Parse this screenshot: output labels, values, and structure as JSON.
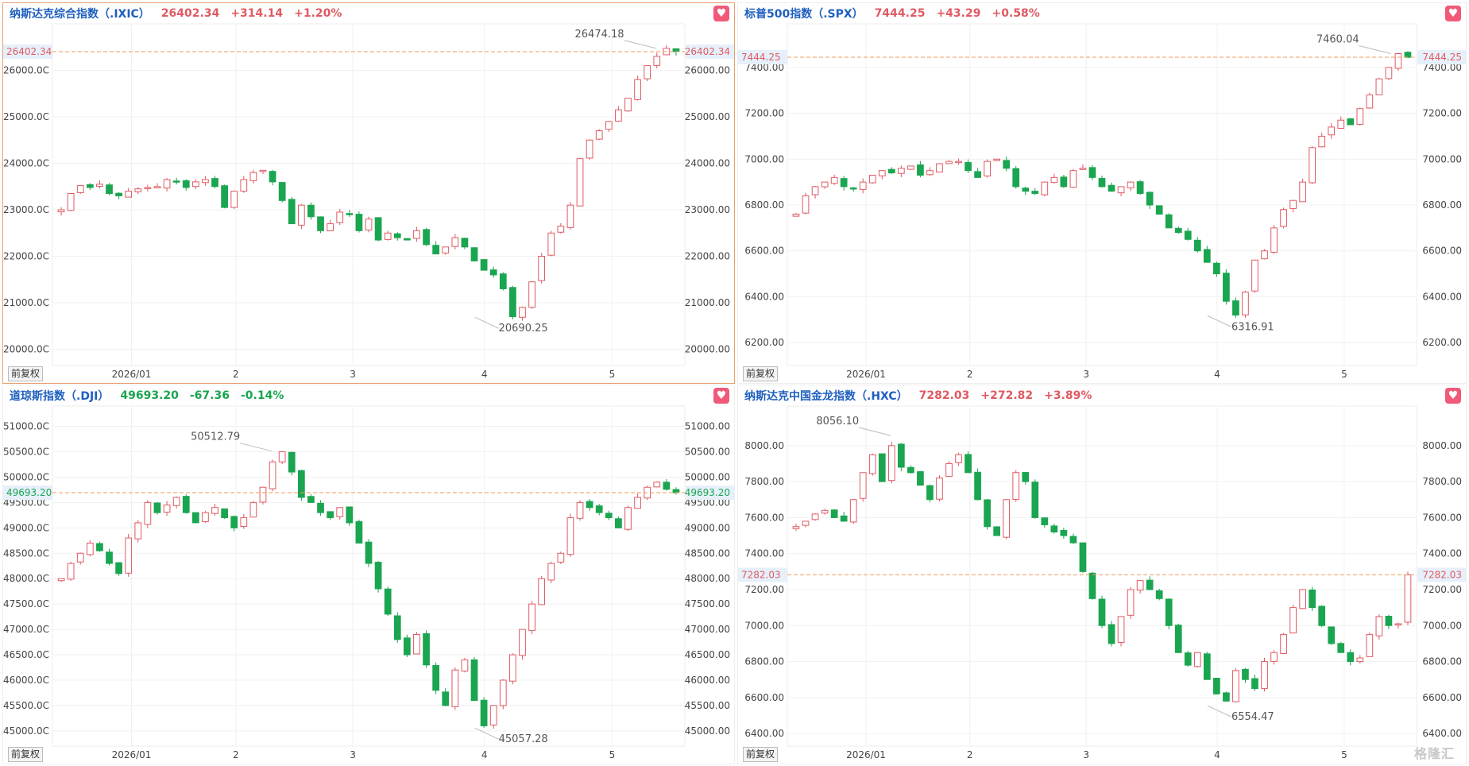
{
  "colors": {
    "up": "#e05a63",
    "down": "#1aa550",
    "title": "#1f5fbf",
    "last_line": "#f29a5a"
  },
  "adjust_label": "前复权",
  "watermark": "格隆汇",
  "chart_data": [
    {
      "type": "candlestick",
      "title": "纳斯达克综合指数（.IXIC）",
      "last": "26402.34",
      "change": "+314.14",
      "pct": "+1.20%",
      "direction": "up",
      "ylim": [
        19650,
        27000
      ],
      "yticks": [
        20000,
        21000,
        22000,
        23000,
        24000,
        25000,
        26000
      ],
      "ytick_labels_left": [
        "20000.0C",
        "21000.0C",
        "22000.0C",
        "23000.0C",
        "24000.0C",
        "25000.0C",
        "26000.0C"
      ],
      "ytick_labels_right": [
        "20000.00",
        "21000.00",
        "22000.00",
        "23000.00",
        "24000.00",
        "25000.00",
        "26000.00"
      ],
      "xticks": [
        {
          "label": "2026/01",
          "pos": 0.125
        },
        {
          "label": "2",
          "pos": 0.29
        },
        {
          "label": "3",
          "pos": 0.475
        },
        {
          "label": "4",
          "pos": 0.683
        },
        {
          "label": "5",
          "pos": 0.885
        }
      ],
      "last_value": 26402.34,
      "last_label": "26402.34",
      "annotations": [
        {
          "label": "26474.18",
          "value": 26474.18,
          "idx_frac": 0.96,
          "side": "top"
        },
        {
          "label": "20690.25",
          "value": 20690.25,
          "idx_frac": 0.67,
          "side": "bottom"
        }
      ],
      "path": [
        23000,
        23350,
        23520,
        23480,
        23550,
        23350,
        23300,
        23400,
        23450,
        23480,
        23500,
        23650,
        23600,
        23480,
        23600,
        23650,
        23500,
        23050,
        23400,
        23650,
        23800,
        23850,
        23600,
        23200,
        22700,
        23100,
        22850,
        22550,
        22700,
        22950,
        22900,
        22550,
        22800,
        22350,
        22500,
        22400,
        22350,
        22550,
        22250,
        22050,
        22200,
        22400,
        22200,
        21900,
        21700,
        21600,
        21300,
        20700,
        20900,
        21450,
        22000,
        22500,
        22650,
        23100,
        24100,
        24500,
        24700,
        24900,
        25150,
        25400,
        25800,
        26100,
        26300,
        26474,
        26402
      ]
    },
    {
      "type": "candlestick",
      "title": "标普500指数（.SPX）",
      "last": "7444.25",
      "change": "+43.29",
      "pct": "+0.58%",
      "direction": "up",
      "ylim": [
        6100,
        7590
      ],
      "yticks": [
        6200,
        6400,
        6600,
        6800,
        7000,
        7200,
        7400
      ],
      "ytick_labels_left": [
        "6200.00",
        "6400.00",
        "6600.00",
        "6800.00",
        "7000.00",
        "7200.00",
        "7400.00"
      ],
      "ytick_labels_right": [
        "6200.00",
        "6400.00",
        "6600.00",
        "6800.00",
        "7000.00",
        "7200.00",
        "7400.00"
      ],
      "xticks": [
        {
          "label": "2026/01",
          "pos": 0.125
        },
        {
          "label": "2",
          "pos": 0.29
        },
        {
          "label": "3",
          "pos": 0.475
        },
        {
          "label": "4",
          "pos": 0.683
        },
        {
          "label": "5",
          "pos": 0.885
        }
      ],
      "last_value": 7444.25,
      "last_label": "7444.25",
      "annotations": [
        {
          "label": "7460.04",
          "value": 7460.04,
          "idx_frac": 0.965,
          "side": "top"
        },
        {
          "label": "6316.91",
          "value": 6316.91,
          "idx_frac": 0.67,
          "side": "bottom"
        }
      ],
      "path": [
        6760,
        6840,
        6880,
        6900,
        6920,
        6880,
        6870,
        6900,
        6930,
        6950,
        6940,
        6960,
        6970,
        6930,
        6950,
        6980,
        6990,
        6990,
        6950,
        6920,
        6990,
        7000,
        6960,
        6880,
        6860,
        6850,
        6900,
        6920,
        6880,
        6950,
        6960,
        6920,
        6880,
        6860,
        6880,
        6900,
        6850,
        6800,
        6760,
        6700,
        6680,
        6650,
        6600,
        6550,
        6500,
        6380,
        6320,
        6420,
        6560,
        6600,
        6700,
        6780,
        6820,
        6900,
        7050,
        7100,
        7140,
        7170,
        7150,
        7220,
        7280,
        7350,
        7400,
        7460,
        7444
      ]
    },
    {
      "type": "candlestick",
      "title": "道琼斯指数（.DJI）",
      "last": "49693.20",
      "change": "-67.36",
      "pct": "-0.14%",
      "direction": "down",
      "ylim": [
        44700,
        51400
      ],
      "yticks": [
        45000,
        45500,
        46000,
        46500,
        47000,
        47500,
        48000,
        48500,
        49000,
        49500,
        50000,
        50500,
        51000
      ],
      "ytick_labels_left": [
        "45000.0C",
        "45500.0C",
        "46000.0C",
        "46500.0C",
        "47000.0C",
        "47500.0C",
        "48000.0C",
        "48500.0C",
        "49000.0C",
        "49500.0C",
        "50000.0C",
        "50500.0C",
        "51000.0C"
      ],
      "ytick_labels_right": [
        "45000.00",
        "45500.00",
        "46000.00",
        "46500.00",
        "47000.00",
        "47500.00",
        "48000.00",
        "48500.00",
        "49000.00",
        "49500.00",
        "50000.00",
        "50500.00",
        "51000.00"
      ],
      "xticks": [
        {
          "label": "2026/01",
          "pos": 0.125
        },
        {
          "label": "2",
          "pos": 0.29
        },
        {
          "label": "3",
          "pos": 0.475
        },
        {
          "label": "4",
          "pos": 0.683
        },
        {
          "label": "5",
          "pos": 0.885
        }
      ],
      "last_value": 49693.2,
      "last_label": "49693.20",
      "annotations": [
        {
          "label": "50512.79",
          "value": 50512.79,
          "idx_frac": 0.345,
          "side": "top"
        },
        {
          "label": "45057.28",
          "value": 45057.28,
          "idx_frac": 0.67,
          "side": "bottom"
        }
      ],
      "path": [
        48000,
        48300,
        48500,
        48700,
        48550,
        48300,
        48100,
        48800,
        49100,
        49500,
        49300,
        49450,
        49600,
        49300,
        49100,
        49300,
        49400,
        49200,
        49000,
        49200,
        49500,
        49800,
        50300,
        50500,
        50100,
        49600,
        49500,
        49300,
        49200,
        49400,
        49100,
        48700,
        48300,
        47800,
        47300,
        46800,
        46500,
        46900,
        46300,
        45800,
        45500,
        46200,
        46400,
        45600,
        45100,
        45500,
        46000,
        46500,
        47000,
        47500,
        48000,
        48300,
        48500,
        49200,
        49500,
        49400,
        49300,
        49200,
        49000,
        49400,
        49600,
        49800,
        49900,
        49760,
        49693
      ]
    },
    {
      "type": "candlestick",
      "title": "纳斯达克中国金龙指数（.HXC）",
      "last": "7282.03",
      "change": "+272.82",
      "pct": "+3.89%",
      "direction": "up",
      "ylim": [
        6330,
        8220
      ],
      "yticks": [
        6400,
        6600,
        6800,
        7000,
        7200,
        7400,
        7600,
        7800,
        8000
      ],
      "ytick_labels_left": [
        "6400.00",
        "6600.00",
        "6800.00",
        "7000.00",
        "7200.00",
        "7400.00",
        "7600.00",
        "7800.00",
        "8000.00"
      ],
      "ytick_labels_right": [
        "6400.00",
        "6600.00",
        "6800.00",
        "7000.00",
        "7200.00",
        "7400.00",
        "7600.00",
        "7800.00",
        "8000.00"
      ],
      "xticks": [
        {
          "label": "2026/01",
          "pos": 0.125
        },
        {
          "label": "2",
          "pos": 0.29
        },
        {
          "label": "3",
          "pos": 0.475
        },
        {
          "label": "4",
          "pos": 0.683
        },
        {
          "label": "5",
          "pos": 0.885
        }
      ],
      "last_value": 7282.03,
      "last_label": "7282.03",
      "annotations": [
        {
          "label": "8056.10",
          "value": 8056.1,
          "idx_frac": 0.16,
          "side": "top"
        },
        {
          "label": "6554.47",
          "value": 6554.47,
          "idx_frac": 0.67,
          "side": "bottom"
        }
      ],
      "path": [
        7550,
        7580,
        7620,
        7640,
        7600,
        7580,
        7700,
        7850,
        7950,
        7800,
        8000,
        7880,
        7850,
        7780,
        7700,
        7820,
        7900,
        7950,
        7850,
        7700,
        7550,
        7500,
        7700,
        7850,
        7800,
        7600,
        7560,
        7520,
        7500,
        7460,
        7300,
        7150,
        7000,
        6900,
        7050,
        7200,
        7250,
        7200,
        7150,
        7000,
        6850,
        6780,
        6850,
        6700,
        6620,
        6580,
        6750,
        6700,
        6650,
        6800,
        6850,
        6950,
        7100,
        7200,
        7100,
        7000,
        6900,
        6850,
        6800,
        6820,
        6950,
        7050,
        7000,
        7010,
        7282
      ]
    }
  ]
}
